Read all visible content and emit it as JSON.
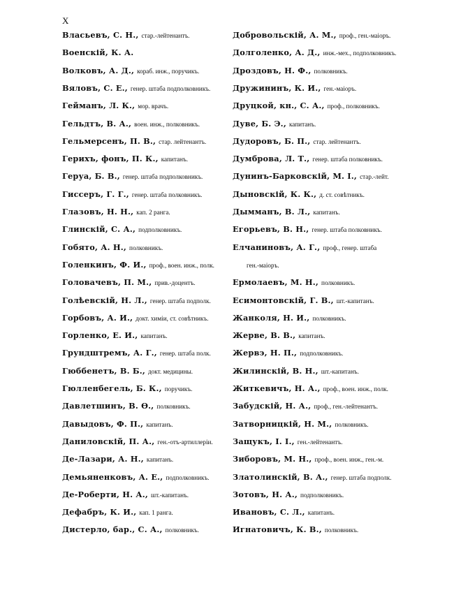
{
  "page_number": "X",
  "left_column": [
    {
      "name": "Власьевъ, С. Н.,",
      "desc": "стар.-лейтенантъ."
    },
    {
      "name": "Военскій, К. А.",
      "desc": ""
    },
    {
      "name": "Волковъ, А. Д.,",
      "desc": "кораб. инж., поручикъ."
    },
    {
      "name": "Вяловъ, С. Е.,",
      "desc": "генер. штаба подполковникъ."
    },
    {
      "name": "Гейманъ, Л. К.,",
      "desc": "мор. врачъ."
    },
    {
      "name": "Гельдтъ, В. А.,",
      "desc": "воен. инж., полковникъ."
    },
    {
      "name": "Гельмерсенъ, П. В.,",
      "desc": "стар. лейтенантъ."
    },
    {
      "name": "Герихъ, фонъ, П. К.,",
      "desc": "капитанъ."
    },
    {
      "name": "Геруа, Б. В.,",
      "desc": "генер. штаба подполковникъ."
    },
    {
      "name": "Гиссеръ, Г. Г.,",
      "desc": "генер. штаба полковникъ."
    },
    {
      "name": "Глазовъ, Н. Н.,",
      "desc": "кап. 2 ранга."
    },
    {
      "name": "Глинскій, С. А.,",
      "desc": "подполковникъ."
    },
    {
      "name": "Гобято, А. Н.,",
      "desc": "полковникъ."
    },
    {
      "name": "Голенкинъ, Ф. И.,",
      "desc": "проф., воен. инж., полк."
    },
    {
      "name": "Головачевъ, П. М.,",
      "desc": "прив.-доцентъ."
    },
    {
      "name": "Голѣевскій, Н. Л.,",
      "desc": "генер. штаба подполк."
    },
    {
      "name": "Горбовъ, А. И.,",
      "desc": "докт. химіи, ст. совѣтникъ."
    },
    {
      "name": "Горленко, Е. И.,",
      "desc": "капитанъ."
    },
    {
      "name": "Грундштремъ, А. Г.,",
      "desc": "генер. штаба полк."
    },
    {
      "name": "Гюббенетъ, В. Б.,",
      "desc": "докт. медицины."
    },
    {
      "name": "Гюлленбегель, Б. К.,",
      "desc": "поручикъ."
    },
    {
      "name": "Давлетшинъ, В. Ѳ.,",
      "desc": "полковникъ."
    },
    {
      "name": "Давыдовъ, Ф. П.,",
      "desc": "капитанъ."
    },
    {
      "name": "Даниловскій, П. А.,",
      "desc": "ген.-отъ-артиллеріи."
    },
    {
      "name": "Де-Лазари, А. Н.,",
      "desc": "капитанъ."
    },
    {
      "name": "Демьяненковъ, А. Е.,",
      "desc": "подполковникъ."
    },
    {
      "name": "Де-Роберти, Н. А.,",
      "desc": "шт.-капитанъ."
    },
    {
      "name": "Дефабръ, К. И.,",
      "desc": "кап. 1 ранга."
    },
    {
      "name": "Дистерло, бар., С. А.,",
      "desc": "полковникъ."
    }
  ],
  "right_column": [
    {
      "name": "Добровольскій, А. М.,",
      "desc": "проф., ген.-маіоръ."
    },
    {
      "name": "Долголенко, А. Д.,",
      "desc": "инж.-мех., подполковникъ."
    },
    {
      "name": "Дроздовъ, Н. Ф.,",
      "desc": "полковникъ."
    },
    {
      "name": "Дружининъ, К. И.,",
      "desc": "ген.-маіоръ."
    },
    {
      "name": "Друцкой, кн., С. А.,",
      "desc": "проф., полковникъ."
    },
    {
      "name": "Дуве, Б. Э.,",
      "desc": "капитанъ."
    },
    {
      "name": "Дудоровъ, Б. П.,",
      "desc": "стар. лейтенантъ."
    },
    {
      "name": "Думброва, Л. Т.,",
      "desc": "генер. штаба полковникъ."
    },
    {
      "name": "Дунинъ-Барковскій, М. І.,",
      "desc": "стар.-лейт."
    },
    {
      "name": "Дыновскій, К. К.,",
      "desc": "д. ст. совѣтникъ."
    },
    {
      "name": "Дымманъ, В. Л.,",
      "desc": "капитанъ."
    },
    {
      "name": "Егорьевъ, В. Н.,",
      "desc": "генер. штаба полковникъ."
    },
    {
      "name": "Елчаниновъ, А. Г.,",
      "desc": "проф., генер. штаба"
    },
    {
      "name": "",
      "desc": "ген.-маіоръ.",
      "continuation": true
    },
    {
      "name": "Ермолаевъ, М. Н.,",
      "desc": "полковникъ."
    },
    {
      "name": "Есимонтовскій, Г. В.,",
      "desc": "шт.-капитанъ."
    },
    {
      "name": "Жанколя, Н. И.,",
      "desc": "полковникъ."
    },
    {
      "name": "Жерве, В. В.,",
      "desc": "капитанъ."
    },
    {
      "name": "Жервэ, Н. П.,",
      "desc": "подполковникъ."
    },
    {
      "name": "Жилинскій, В. Н.,",
      "desc": "шт.-капитанъ."
    },
    {
      "name": "Житкевичъ, Н. А.,",
      "desc": "проф., воен. инж., полк."
    },
    {
      "name": "Забудскій, Н. А.,",
      "desc": "проф., ген.-лейтенантъ."
    },
    {
      "name": "Затворницкій, Н. М.,",
      "desc": "полковникъ."
    },
    {
      "name": "Защукъ, І. І.,",
      "desc": "ген.-лейтенантъ."
    },
    {
      "name": "Зиборовъ, М. Н.,",
      "desc": "проф., воен. инж., ген.-м."
    },
    {
      "name": "Златолинскій, В. А.,",
      "desc": "генер. штаба подполк."
    },
    {
      "name": "Зотовъ, Н. А.,",
      "desc": "подполковникъ."
    },
    {
      "name": "Ивановъ, С. Л.,",
      "desc": "капитанъ."
    },
    {
      "name": "Игнатовичъ, К. В.,",
      "desc": "полковникъ."
    }
  ]
}
